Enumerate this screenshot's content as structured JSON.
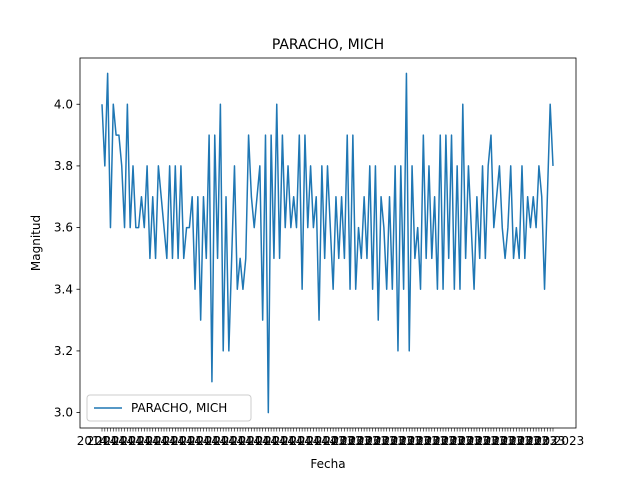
{
  "chart_data": {
    "type": "line",
    "title": "PARACHO, MICH",
    "xlabel": "Fecha",
    "ylabel": "Magnitud",
    "ylim": [
      2.95,
      4.15
    ],
    "y_ticks": [
      3.0,
      3.2,
      3.4,
      3.6,
      3.8,
      4.0
    ],
    "y_tick_labels": [
      "3.0",
      "3.2",
      "3.4",
      "3.6",
      "3.8",
      "4.0"
    ],
    "x_tick_labels_first": "2014",
    "x_tick_labels_last": "2023",
    "x_tick_label_note": "dense overlapping date labels",
    "legend": {
      "position": "lower-left",
      "entries": [
        "PARACHO, MICH"
      ]
    },
    "series": [
      {
        "name": "PARACHO, MICH",
        "color": "#1f77b4",
        "values": [
          4.0,
          3.8,
          4.1,
          3.6,
          4.0,
          3.9,
          3.9,
          3.8,
          3.6,
          4.0,
          3.6,
          3.8,
          3.6,
          3.6,
          3.7,
          3.6,
          3.8,
          3.5,
          3.7,
          3.5,
          3.8,
          3.7,
          3.6,
          3.5,
          3.8,
          3.5,
          3.8,
          3.5,
          3.8,
          3.5,
          3.6,
          3.6,
          3.7,
          3.4,
          3.7,
          3.3,
          3.7,
          3.5,
          3.9,
          3.1,
          3.9,
          3.5,
          4.0,
          3.2,
          3.7,
          3.2,
          3.5,
          3.8,
          3.4,
          3.5,
          3.4,
          3.5,
          3.9,
          3.7,
          3.6,
          3.7,
          3.8,
          3.3,
          3.9,
          3.0,
          3.9,
          3.5,
          4.0,
          3.5,
          3.9,
          3.6,
          3.8,
          3.6,
          3.7,
          3.6,
          3.9,
          3.4,
          3.9,
          3.6,
          3.8,
          3.6,
          3.7,
          3.3,
          3.8,
          3.5,
          3.8,
          3.6,
          3.4,
          3.7,
          3.5,
          3.7,
          3.5,
          3.9,
          3.4,
          3.9,
          3.4,
          3.6,
          3.5,
          3.7,
          3.5,
          3.8,
          3.4,
          3.8,
          3.3,
          3.7,
          3.6,
          3.4,
          3.7,
          3.4,
          3.8,
          3.2,
          3.8,
          3.4,
          4.1,
          3.2,
          3.8,
          3.5,
          3.6,
          3.4,
          3.9,
          3.5,
          3.8,
          3.5,
          3.7,
          3.4,
          3.9,
          3.4,
          3.9,
          3.5,
          3.9,
          3.4,
          3.8,
          3.4,
          4.0,
          3.5,
          3.8,
          3.6,
          3.4,
          3.7,
          3.5,
          3.8,
          3.5,
          3.8,
          3.9,
          3.6,
          3.7,
          3.8,
          3.6,
          3.5,
          3.6,
          3.8,
          3.5,
          3.6,
          3.5,
          3.8,
          3.5,
          3.7,
          3.6,
          3.7,
          3.6,
          3.8,
          3.7,
          3.4,
          3.7,
          4.0,
          3.8
        ]
      }
    ]
  }
}
